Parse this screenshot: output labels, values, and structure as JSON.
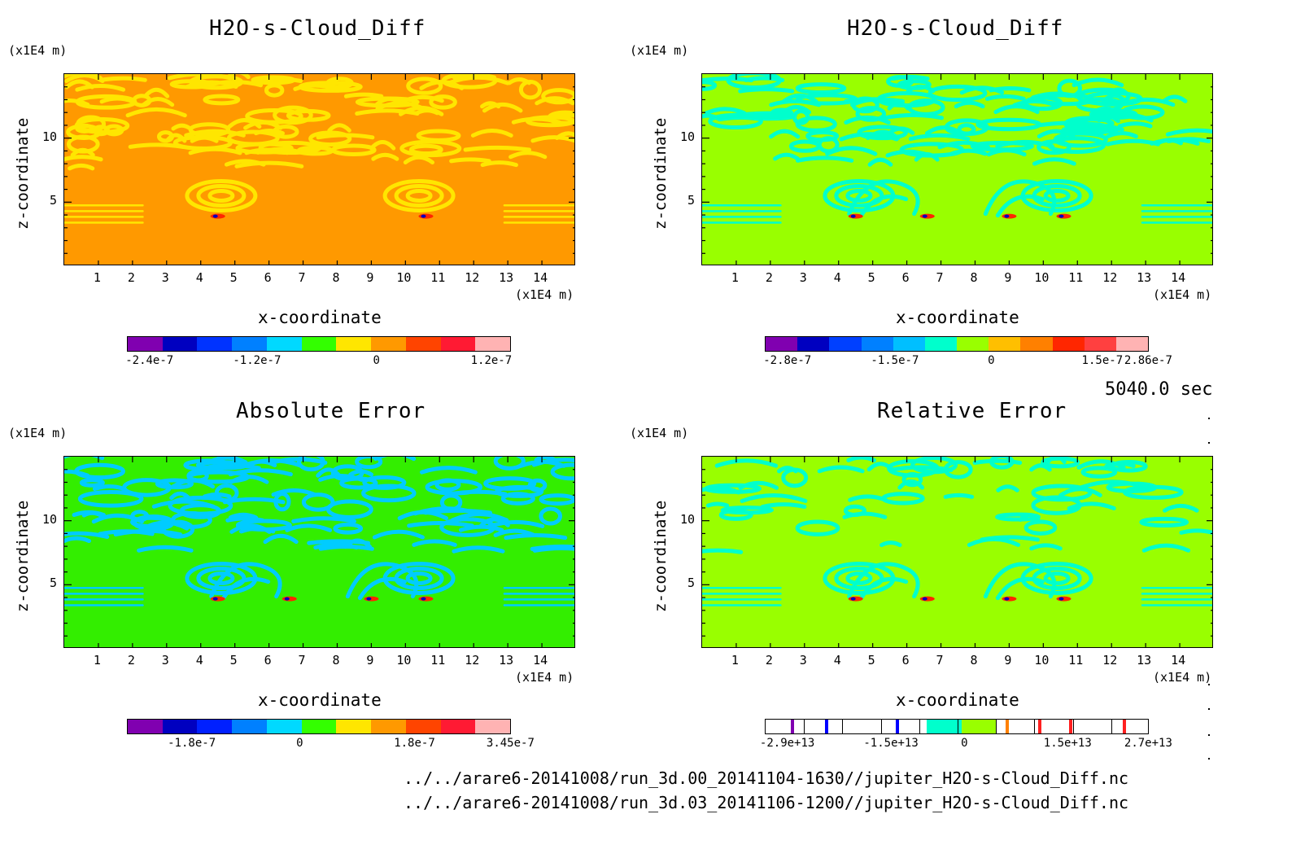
{
  "footer": {
    "time": "5040.0 sec",
    "file1": "../../arare6-20141008/run_3d.00_20141104-1630//jupiter_H2O-s-Cloud_Diff.nc",
    "file2": "../../arare6-20141008/run_3d.03_20141106-1200//jupiter_H2O-s-Cloud_Diff.nc"
  },
  "chart_data": [
    {
      "type": "heatmap",
      "title": "H2O-s-Cloud_Diff",
      "xlabel": "x-coordinate",
      "ylabel": "z-coordinate",
      "x_unit": "(x1E4 m)",
      "y_unit": "(x1E4 m)",
      "xticks": [
        "1",
        "2",
        "3",
        "4",
        "5",
        "6",
        "7",
        "8",
        "9",
        "10",
        "11",
        "12",
        "13",
        "14"
      ],
      "yticks": [
        "5",
        "10"
      ],
      "background": "#ff9900",
      "pattern": "#ffe600",
      "colorbar": {
        "style": "filled",
        "colors": [
          "#8000b0",
          "#0000c0",
          "#0033ff",
          "#0080ff",
          "#00d9ff",
          "#33ff00",
          "#ffe600",
          "#ff9900",
          "#ff4400",
          "#ff1a33",
          "#ffb3b3"
        ],
        "labels": [
          "-2.4e-7",
          "-1.2e-7",
          "0",
          "1.2e-7"
        ]
      }
    },
    {
      "type": "heatmap",
      "title": "H2O-s-Cloud_Diff",
      "xlabel": "x-coordinate",
      "ylabel": "z-coordinate",
      "x_unit": "(x1E4 m)",
      "y_unit": "(x1E4 m)",
      "xticks": [
        "1",
        "2",
        "3",
        "4",
        "5",
        "6",
        "7",
        "8",
        "9",
        "10",
        "11",
        "12",
        "13",
        "14"
      ],
      "yticks": [
        "5",
        "10"
      ],
      "background": "#99ff00",
      "pattern": "#00ffcc",
      "colorbar": {
        "style": "filled",
        "colors": [
          "#8000b0",
          "#0000c0",
          "#0040ff",
          "#0080ff",
          "#00bfff",
          "#00ffcc",
          "#99ff00",
          "#ffbf00",
          "#ff8000",
          "#ff2600",
          "#ff4040",
          "#ffb3b3"
        ],
        "labels": [
          "-2.8e-7",
          "-1.5e-7",
          "0",
          "1.5e-7",
          "2.86e-7"
        ]
      }
    },
    {
      "type": "heatmap",
      "title": "Absolute Error",
      "xlabel": "x-coordinate",
      "ylabel": "z-coordinate",
      "x_unit": "(x1E4 m)",
      "y_unit": "(x1E4 m)",
      "xticks": [
        "1",
        "2",
        "3",
        "4",
        "5",
        "6",
        "7",
        "8",
        "9",
        "10",
        "11",
        "12",
        "13",
        "14"
      ],
      "yticks": [
        "5",
        "10"
      ],
      "background": "#33ee00",
      "pattern": "#00ccff",
      "colorbar": {
        "style": "filled",
        "colors": [
          "#8000b0",
          "#0000c0",
          "#0020ff",
          "#0080ff",
          "#00d9ff",
          "#33ff00",
          "#ffe600",
          "#ff9900",
          "#ff4400",
          "#ff1a33",
          "#ffb3b3"
        ],
        "labels": [
          "-1.8e-7",
          "0",
          "1.8e-7",
          "3.45e-7"
        ]
      }
    },
    {
      "type": "heatmap",
      "title": "Relative Error",
      "xlabel": "x-coordinate",
      "ylabel": "z-coordinate",
      "x_unit": "(x1E4 m)",
      "y_unit": "(x1E4 m)",
      "xticks": [
        "1",
        "2",
        "3",
        "4",
        "5",
        "6",
        "7",
        "8",
        "9",
        "10",
        "11",
        "12",
        "13",
        "14"
      ],
      "yticks": [
        "5",
        "10"
      ],
      "background": "#99ff00",
      "pattern": "#00ffcc",
      "colorbar": {
        "style": "lines",
        "colors": [
          "#8000b0",
          "#0000ff",
          "#00bfff",
          "#00ffcc",
          "#99ff00",
          "#ff8000",
          "#ff2600",
          "#ff2020",
          "#ff2020"
        ],
        "labels": [
          "-2.9e+13",
          "-1.5e+13",
          "0",
          "1.5e+13",
          "2.7e+13"
        ]
      }
    }
  ]
}
